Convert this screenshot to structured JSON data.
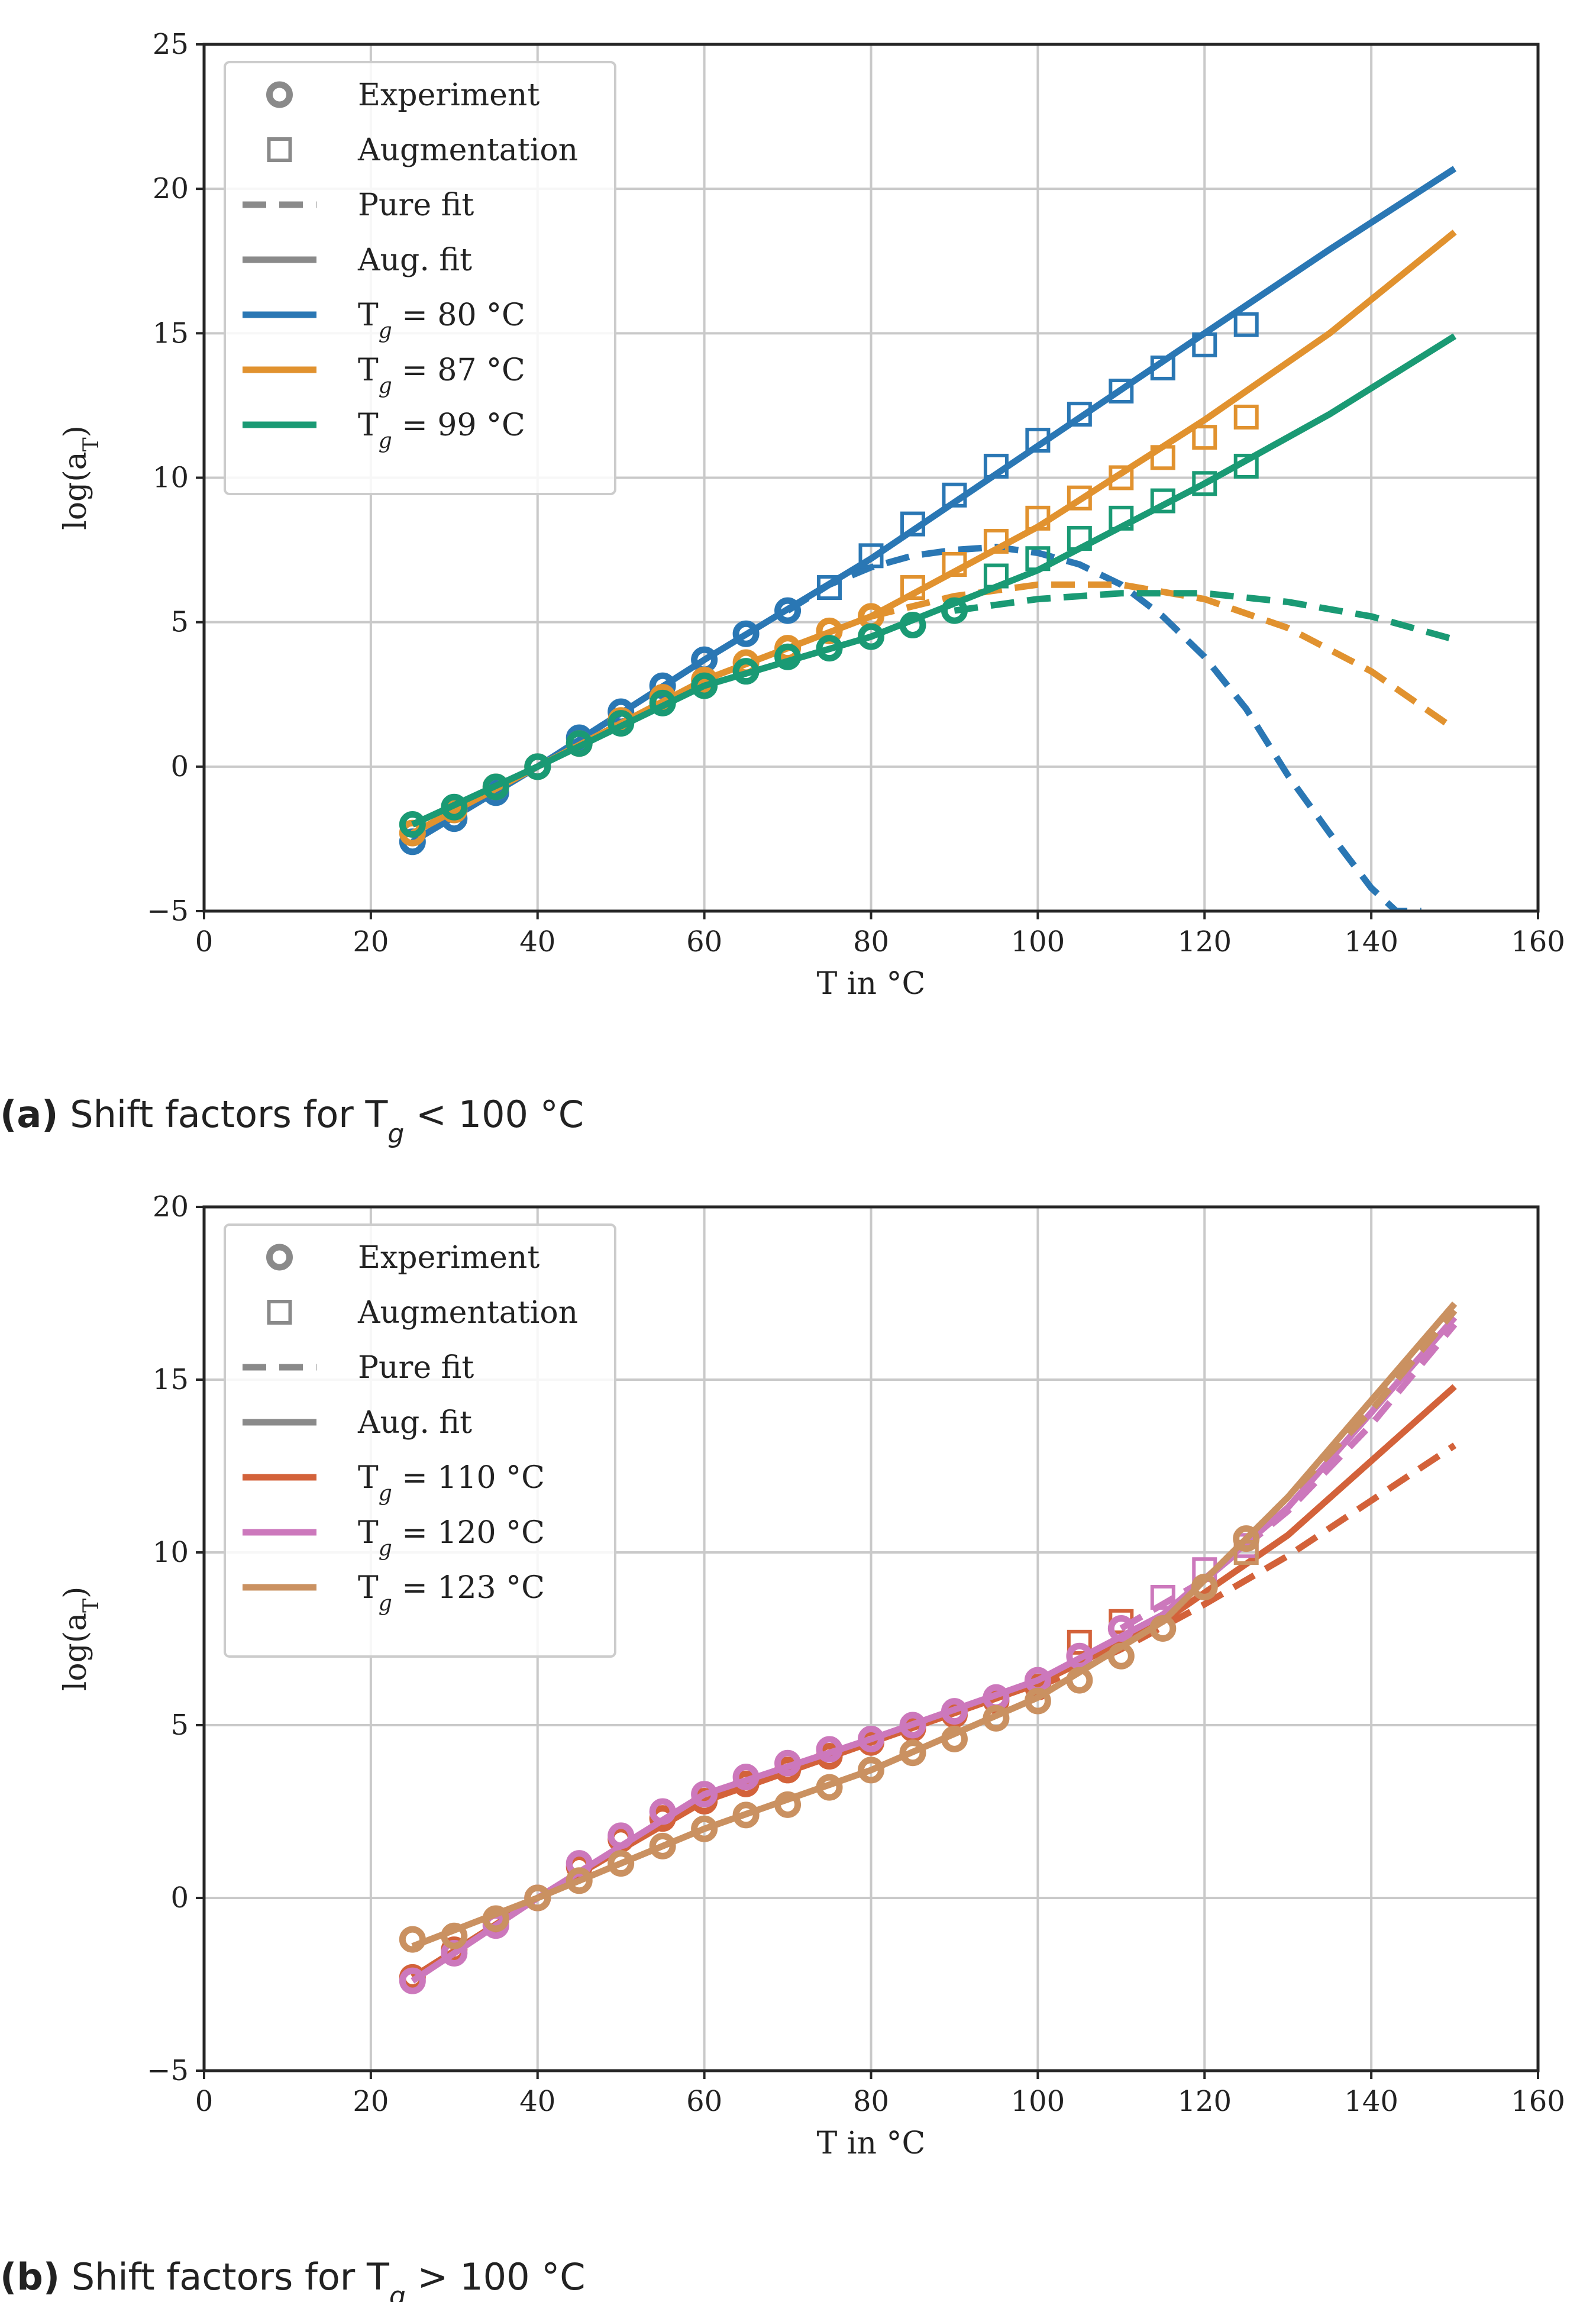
{
  "chart_data": [
    {
      "type": "line",
      "xlabel": "T in °C",
      "ylabel": "log(a_T)",
      "xlim": [
        0,
        160
      ],
      "ylim": [
        -5,
        25
      ],
      "xticks": [
        "0",
        "20",
        "40",
        "60",
        "80",
        "100",
        "120",
        "140",
        "160"
      ],
      "yticks": [
        "−5",
        "0",
        "5",
        "10",
        "15",
        "20",
        "25"
      ],
      "grid": true,
      "legend_placement": "top-left",
      "legend": {
        "experiment": "Experiment",
        "augmentation": "Augmentation",
        "pure_fit": "Pure fit",
        "aug_fit": "Aug. fit"
      },
      "caption": {
        "letter": "(a)",
        "text": "Shift factors for T_g < 100 °C"
      },
      "series": [
        {
          "name": "T_g = 80 °C",
          "color": "#2a77b4",
          "experiment": {
            "x": [
              25,
              30,
              35,
              40,
              45,
              50,
              55,
              60,
              65,
              70
            ],
            "y": [
              -2.6,
              -1.8,
              -0.9,
              0.0,
              1.0,
              1.9,
              2.8,
              3.7,
              4.6,
              5.4
            ]
          },
          "augmentation": {
            "x": [
              75,
              80,
              85,
              90,
              95,
              100,
              105,
              110,
              115,
              120,
              125
            ],
            "y": [
              6.2,
              7.3,
              8.4,
              9.4,
              10.4,
              11.3,
              12.2,
              13.0,
              13.8,
              14.6,
              15.3
            ]
          },
          "pure_fit": {
            "x": [
              70,
              75,
              80,
              85,
              90,
              95,
              100,
              105,
              110,
              115,
              120,
              125,
              130,
              135,
              140,
              143,
              146
            ],
            "y": [
              5.4,
              6.3,
              6.9,
              7.3,
              7.5,
              7.6,
              7.4,
              7.0,
              6.3,
              5.2,
              3.8,
              2.0,
              -0.3,
              -2.3,
              -4.2,
              -5.0,
              -5.0
            ]
          },
          "aug_fit": {
            "x": [
              25,
              40,
              60,
              80,
              100,
              120,
              135,
              150
            ],
            "y": [
              -2.6,
              0.0,
              3.7,
              7.2,
              11.1,
              15.0,
              17.9,
              20.7
            ]
          }
        },
        {
          "name": "T_g = 87 °C",
          "color": "#e1922f",
          "experiment": {
            "x": [
              25,
              30,
              35,
              40,
              45,
              50,
              55,
              60,
              65,
              70,
              75,
              80
            ],
            "y": [
              -2.3,
              -1.5,
              -0.7,
              0.0,
              0.8,
              1.6,
              2.4,
              3.0,
              3.6,
              4.1,
              4.7,
              5.2
            ]
          },
          "augmentation": {
            "x": [
              85,
              90,
              95,
              100,
              105,
              110,
              115,
              120,
              125
            ],
            "y": [
              6.2,
              7.0,
              7.8,
              8.6,
              9.3,
              10.0,
              10.7,
              11.4,
              12.1
            ]
          },
          "pure_fit": {
            "x": [
              80,
              90,
              100,
              110,
              120,
              130,
              140,
              150
            ],
            "y": [
              5.2,
              5.9,
              6.3,
              6.3,
              5.8,
              4.8,
              3.3,
              1.3
            ]
          },
          "aug_fit": {
            "x": [
              25,
              40,
              60,
              80,
              100,
              120,
              135,
              150
            ],
            "y": [
              -2.3,
              0.0,
              3.0,
              5.2,
              8.3,
              12.0,
              15.0,
              18.5
            ]
          }
        },
        {
          "name": "T_g = 99 °C",
          "color": "#1a9a74",
          "experiment": {
            "x": [
              25,
              30,
              35,
              40,
              45,
              50,
              55,
              60,
              65,
              70,
              75,
              80,
              85,
              90
            ],
            "y": [
              -2.0,
              -1.4,
              -0.7,
              0.0,
              0.8,
              1.5,
              2.2,
              2.8,
              3.3,
              3.8,
              4.1,
              4.5,
              4.9,
              5.4
            ]
          },
          "augmentation": {
            "x": [
              95,
              100,
              105,
              110,
              115,
              120,
              125
            ],
            "y": [
              6.6,
              7.2,
              7.9,
              8.6,
              9.2,
              9.8,
              10.4
            ]
          },
          "pure_fit": {
            "x": [
              90,
              100,
              110,
              120,
              130,
              140,
              150
            ],
            "y": [
              5.4,
              5.8,
              6.0,
              6.0,
              5.7,
              5.2,
              4.4
            ]
          },
          "aug_fit": {
            "x": [
              25,
              40,
              60,
              80,
              100,
              120,
              135,
              150
            ],
            "y": [
              -2.0,
              0.0,
              2.8,
              4.5,
              6.8,
              9.8,
              12.2,
              14.9
            ]
          }
        }
      ]
    },
    {
      "type": "line",
      "xlabel": "T in °C",
      "ylabel": "log(a_T)",
      "xlim": [
        0,
        160
      ],
      "ylim": [
        -5,
        20
      ],
      "xticks": [
        "0",
        "20",
        "40",
        "60",
        "80",
        "100",
        "120",
        "140",
        "160"
      ],
      "yticks": [
        "−5",
        "0",
        "5",
        "10",
        "15",
        "20"
      ],
      "grid": true,
      "legend_placement": "top-left",
      "legend": {
        "experiment": "Experiment",
        "augmentation": "Augmentation",
        "pure_fit": "Pure fit",
        "aug_fit": "Aug. fit"
      },
      "caption": {
        "letter": "(b)",
        "text": "Shift factors for T_g > 100 °C"
      },
      "series": [
        {
          "name": "T_g = 110 °C",
          "color": "#d3623a",
          "experiment": {
            "x": [
              25,
              30,
              35,
              40,
              45,
              50,
              55,
              60,
              65,
              70,
              75,
              80,
              85,
              90,
              95,
              100
            ],
            "y": [
              -2.3,
              -1.5,
              -0.7,
              0.0,
              0.9,
              1.7,
              2.3,
              2.8,
              3.3,
              3.7,
              4.1,
              4.5,
              4.9,
              5.3,
              5.7,
              6.1
            ]
          },
          "augmentation": {
            "x": [
              105,
              110
            ],
            "y": [
              7.4,
              8.0
            ]
          },
          "pure_fit": {
            "x": [
              100,
              110,
              120,
              130,
              140,
              150
            ],
            "y": [
              6.1,
              7.2,
              8.5,
              9.9,
              11.5,
              13.1
            ]
          },
          "aug_fit": {
            "x": [
              25,
              40,
              60,
              80,
              100,
              115,
              130,
              150
            ],
            "y": [
              -2.3,
              0.0,
              2.8,
              4.5,
              6.2,
              8.0,
              10.5,
              14.8
            ]
          }
        },
        {
          "name": "T_g = 120 °C",
          "color": "#cc78bc",
          "experiment": {
            "x": [
              25,
              30,
              35,
              40,
              45,
              50,
              55,
              60,
              65,
              70,
              75,
              80,
              85,
              90,
              95,
              100,
              105,
              110
            ],
            "y": [
              -2.4,
              -1.6,
              -0.8,
              0.0,
              1.0,
              1.8,
              2.5,
              3.0,
              3.5,
              3.9,
              4.3,
              4.6,
              5.0,
              5.4,
              5.8,
              6.3,
              7.0,
              7.8
            ]
          },
          "augmentation": {
            "x": [
              115,
              120,
              125
            ],
            "y": [
              8.7,
              9.5,
              10.2
            ]
          },
          "pure_fit": {
            "x": [
              110,
              120,
              130,
              140,
              150
            ],
            "y": [
              7.8,
              9.2,
              11.2,
              13.7,
              16.6
            ]
          },
          "aug_fit": {
            "x": [
              25,
              40,
              60,
              80,
              100,
              115,
              130,
              150
            ],
            "y": [
              -2.4,
              0.0,
              3.0,
              4.6,
              6.3,
              8.2,
              11.3,
              16.8
            ]
          }
        },
        {
          "name": "T_g = 123 °C",
          "color": "#ca9161",
          "experiment": {
            "x": [
              25,
              30,
              35,
              40,
              45,
              50,
              55,
              60,
              65,
              70,
              75,
              80,
              85,
              90,
              95,
              100,
              105,
              110,
              115,
              120,
              125
            ],
            "y": [
              -1.2,
              -1.1,
              -0.6,
              0.0,
              0.5,
              1.0,
              1.5,
              2.0,
              2.4,
              2.7,
              3.2,
              3.7,
              4.2,
              4.6,
              5.2,
              5.7,
              6.3,
              7.0,
              7.8,
              9.0,
              10.4
            ]
          },
          "augmentation": {
            "x": [
              125
            ],
            "y": [
              10.0
            ]
          },
          "pure_fit": {
            "x": [
              125,
              130,
              140,
              150
            ],
            "y": [
              10.4,
              11.6,
              14.1,
              17.0
            ]
          },
          "aug_fit": {
            "x": [
              25,
              40,
              60,
              80,
              100,
              115,
              130,
              150
            ],
            "y": [
              -1.4,
              0.0,
              2.0,
              3.7,
              5.8,
              8.0,
              11.6,
              17.2
            ]
          }
        }
      ]
    }
  ]
}
